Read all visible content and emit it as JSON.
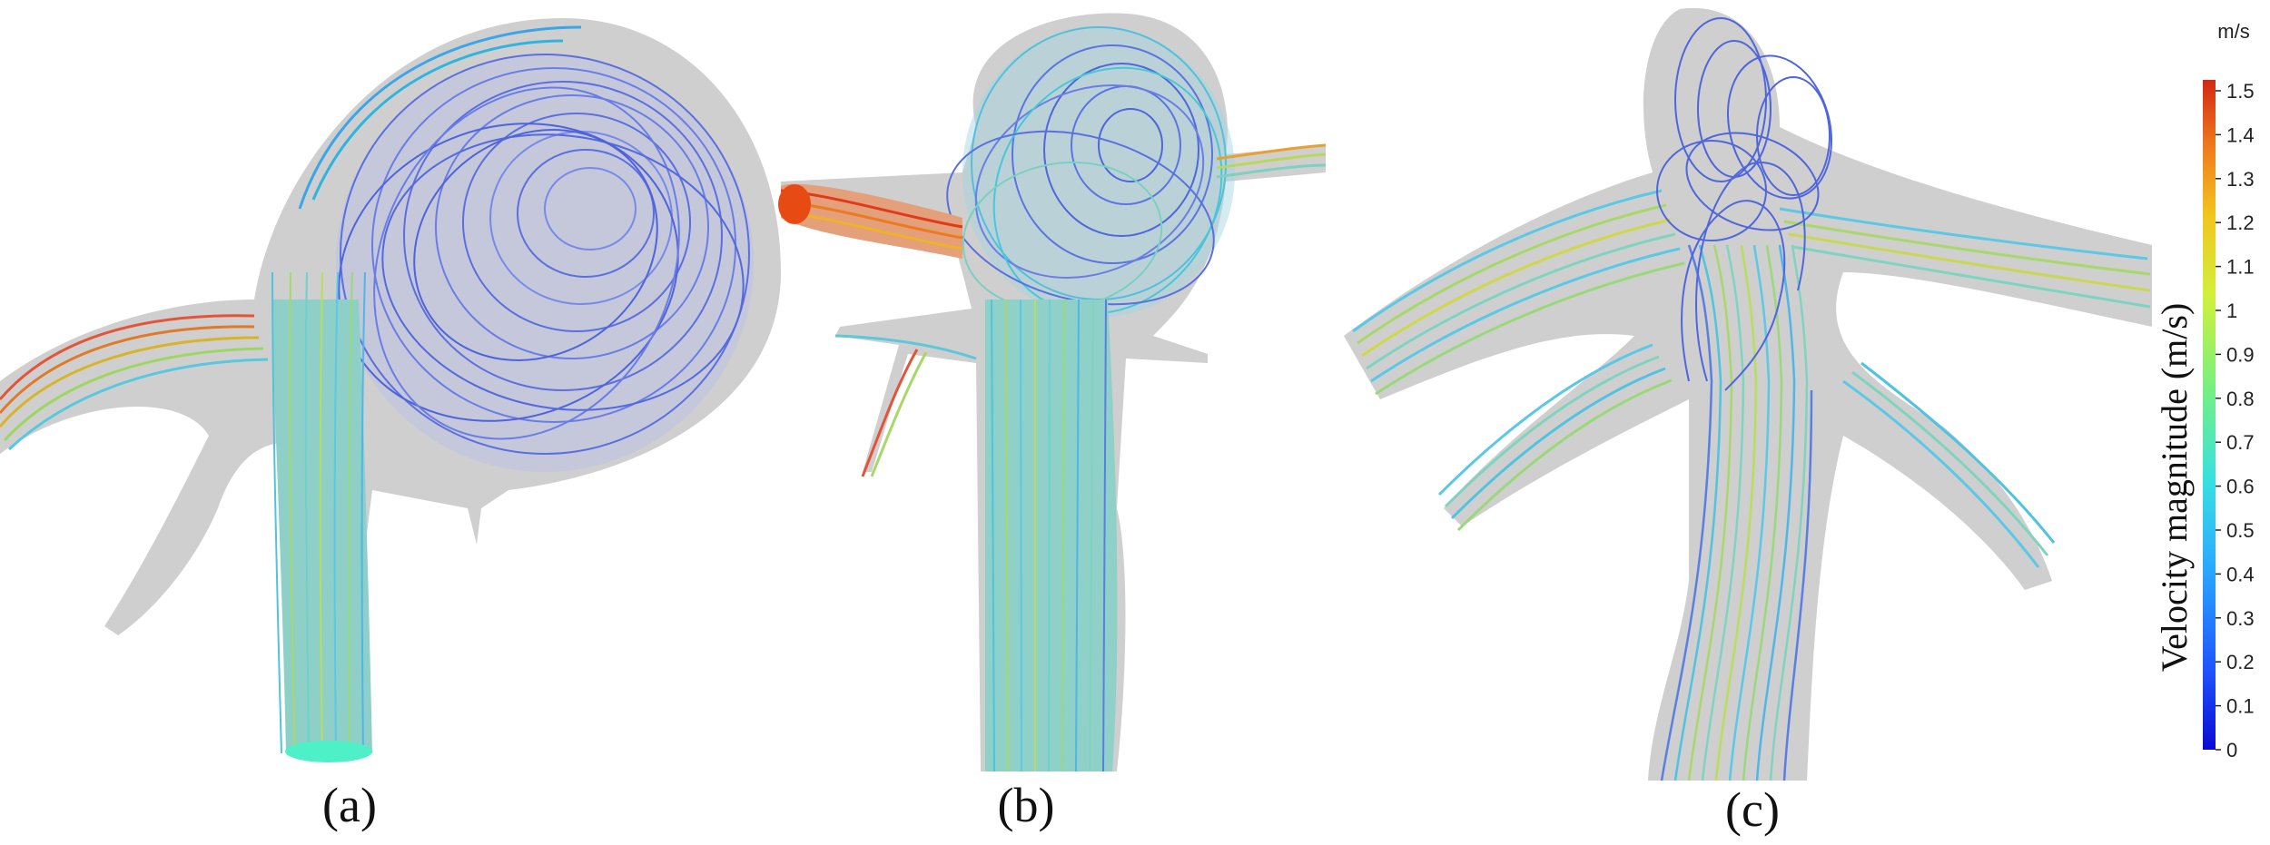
{
  "figure": {
    "panels": [
      {
        "label": "(a)"
      },
      {
        "label": "(b)"
      },
      {
        "label": "(c)"
      }
    ]
  },
  "colorbar": {
    "unit": "m/s",
    "title": "Velocity magnitude (m/s)",
    "ticks": [
      "1.5",
      "1.4",
      "1.3",
      "1.2",
      "1.1",
      "1",
      "0.9",
      "0.8",
      "0.7",
      "0.6",
      "0.5",
      "0.4",
      "0.3",
      "0.2",
      "0.1",
      "0"
    ],
    "colors": [
      "#0a0ad2",
      "#1f55ff",
      "#2aa8ff",
      "#36e0e0",
      "#7df07a",
      "#d2f03a",
      "#f2c41e",
      "#f07a1e",
      "#d22814"
    ]
  }
}
